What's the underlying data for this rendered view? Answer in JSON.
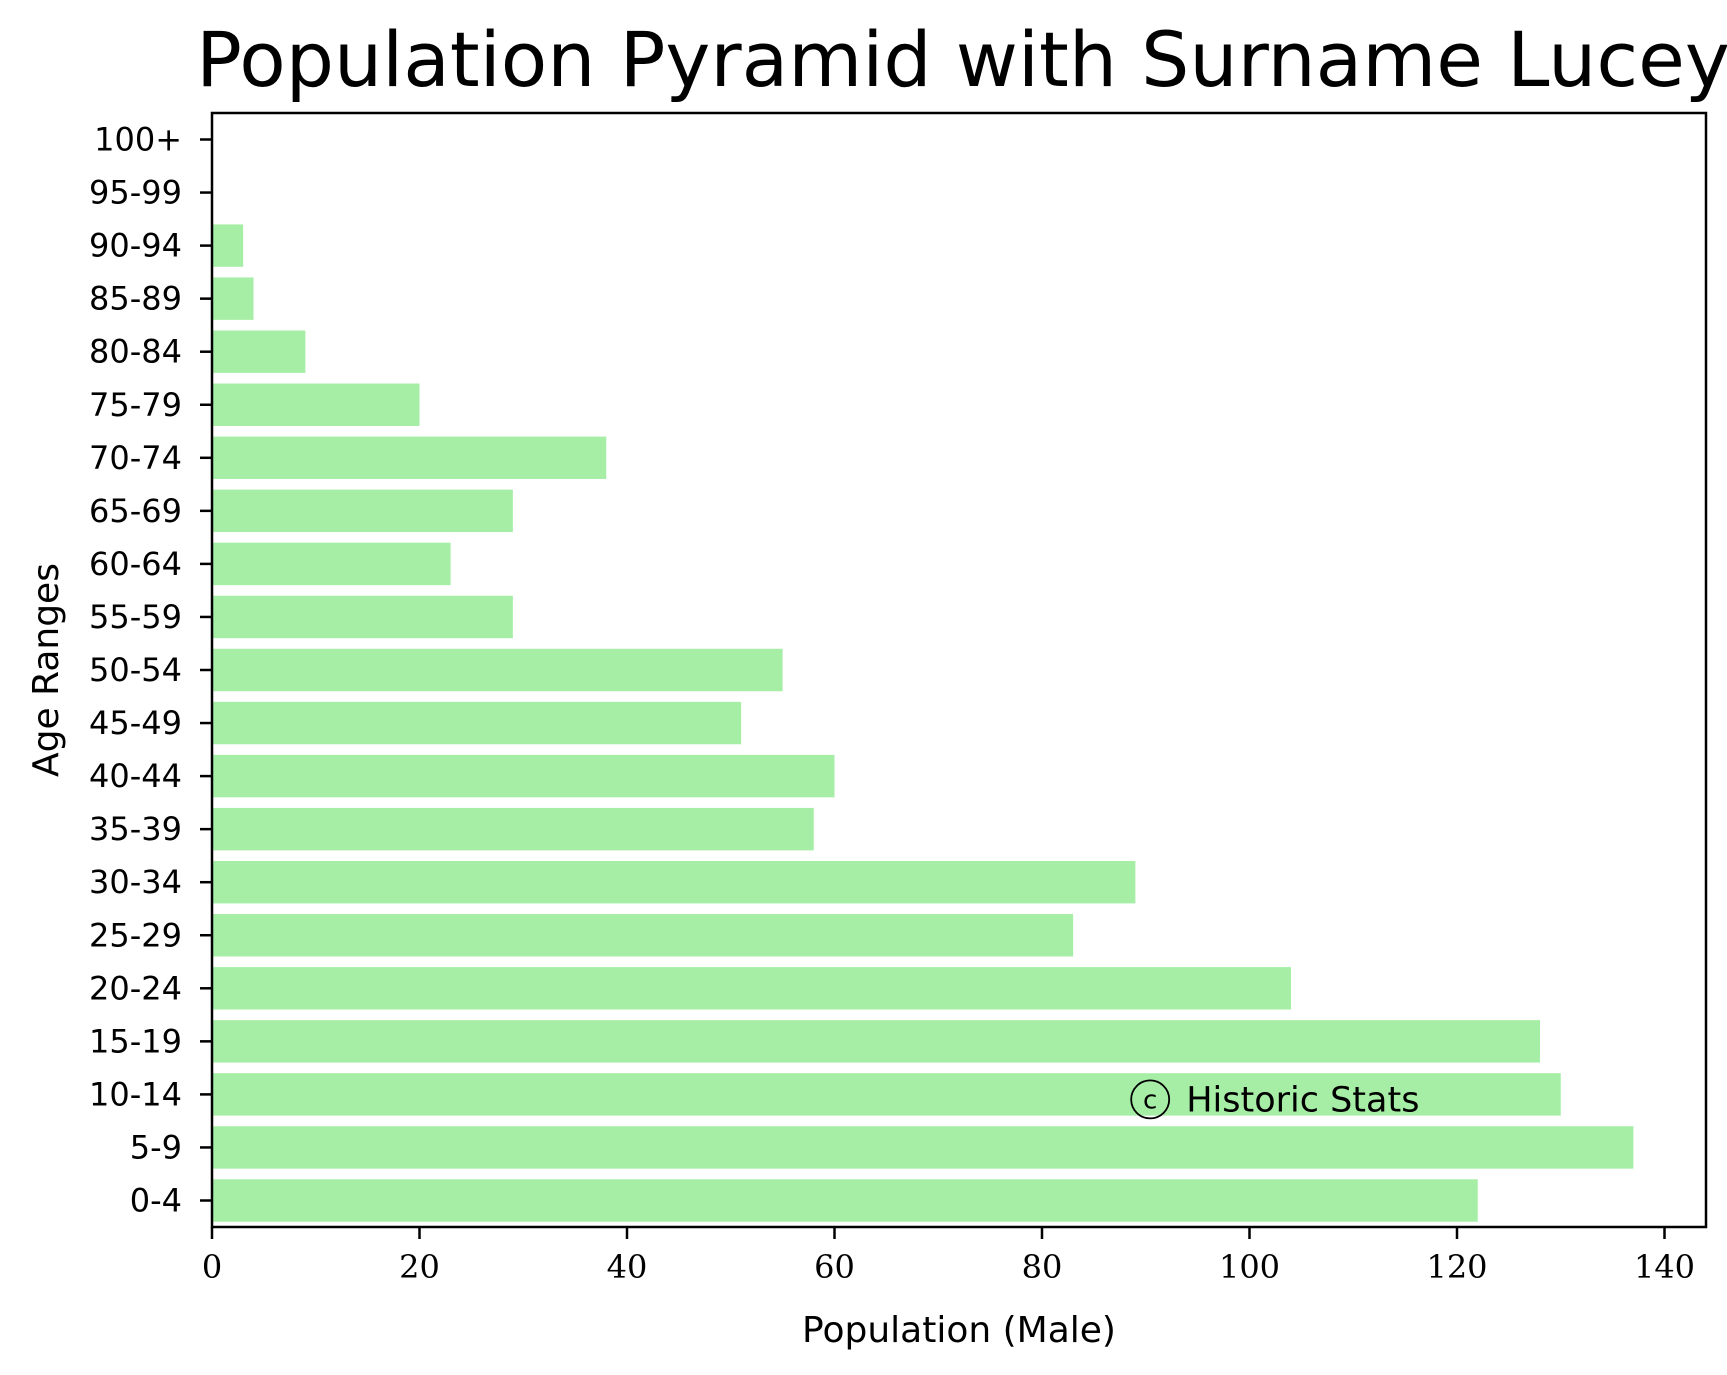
{
  "chart_data": {
    "type": "bar",
    "orientation": "horizontal",
    "title": "Population Pyramid with Surname Lucey",
    "xlabel": "Population (Male)",
    "ylabel": "Age Ranges",
    "categories": [
      "0-4",
      "5-9",
      "10-14",
      "15-19",
      "20-24",
      "25-29",
      "30-34",
      "35-39",
      "40-44",
      "45-49",
      "50-54",
      "55-59",
      "60-64",
      "65-69",
      "70-74",
      "75-79",
      "80-84",
      "85-89",
      "90-94",
      "95-99",
      "100+"
    ],
    "values": [
      122,
      137,
      130,
      128,
      104,
      83,
      89,
      58,
      60,
      51,
      55,
      29,
      23,
      29,
      38,
      20,
      9,
      4,
      3,
      0,
      0
    ],
    "xlim": [
      0,
      144
    ],
    "xticks": [
      0,
      20,
      40,
      60,
      80,
      100,
      120,
      140
    ],
    "grid": false,
    "bar_color": "#a6eea6",
    "annotation": {
      "symbol": "c",
      "text": "Historic Stats",
      "x": 88.5,
      "category": "10-14"
    }
  }
}
